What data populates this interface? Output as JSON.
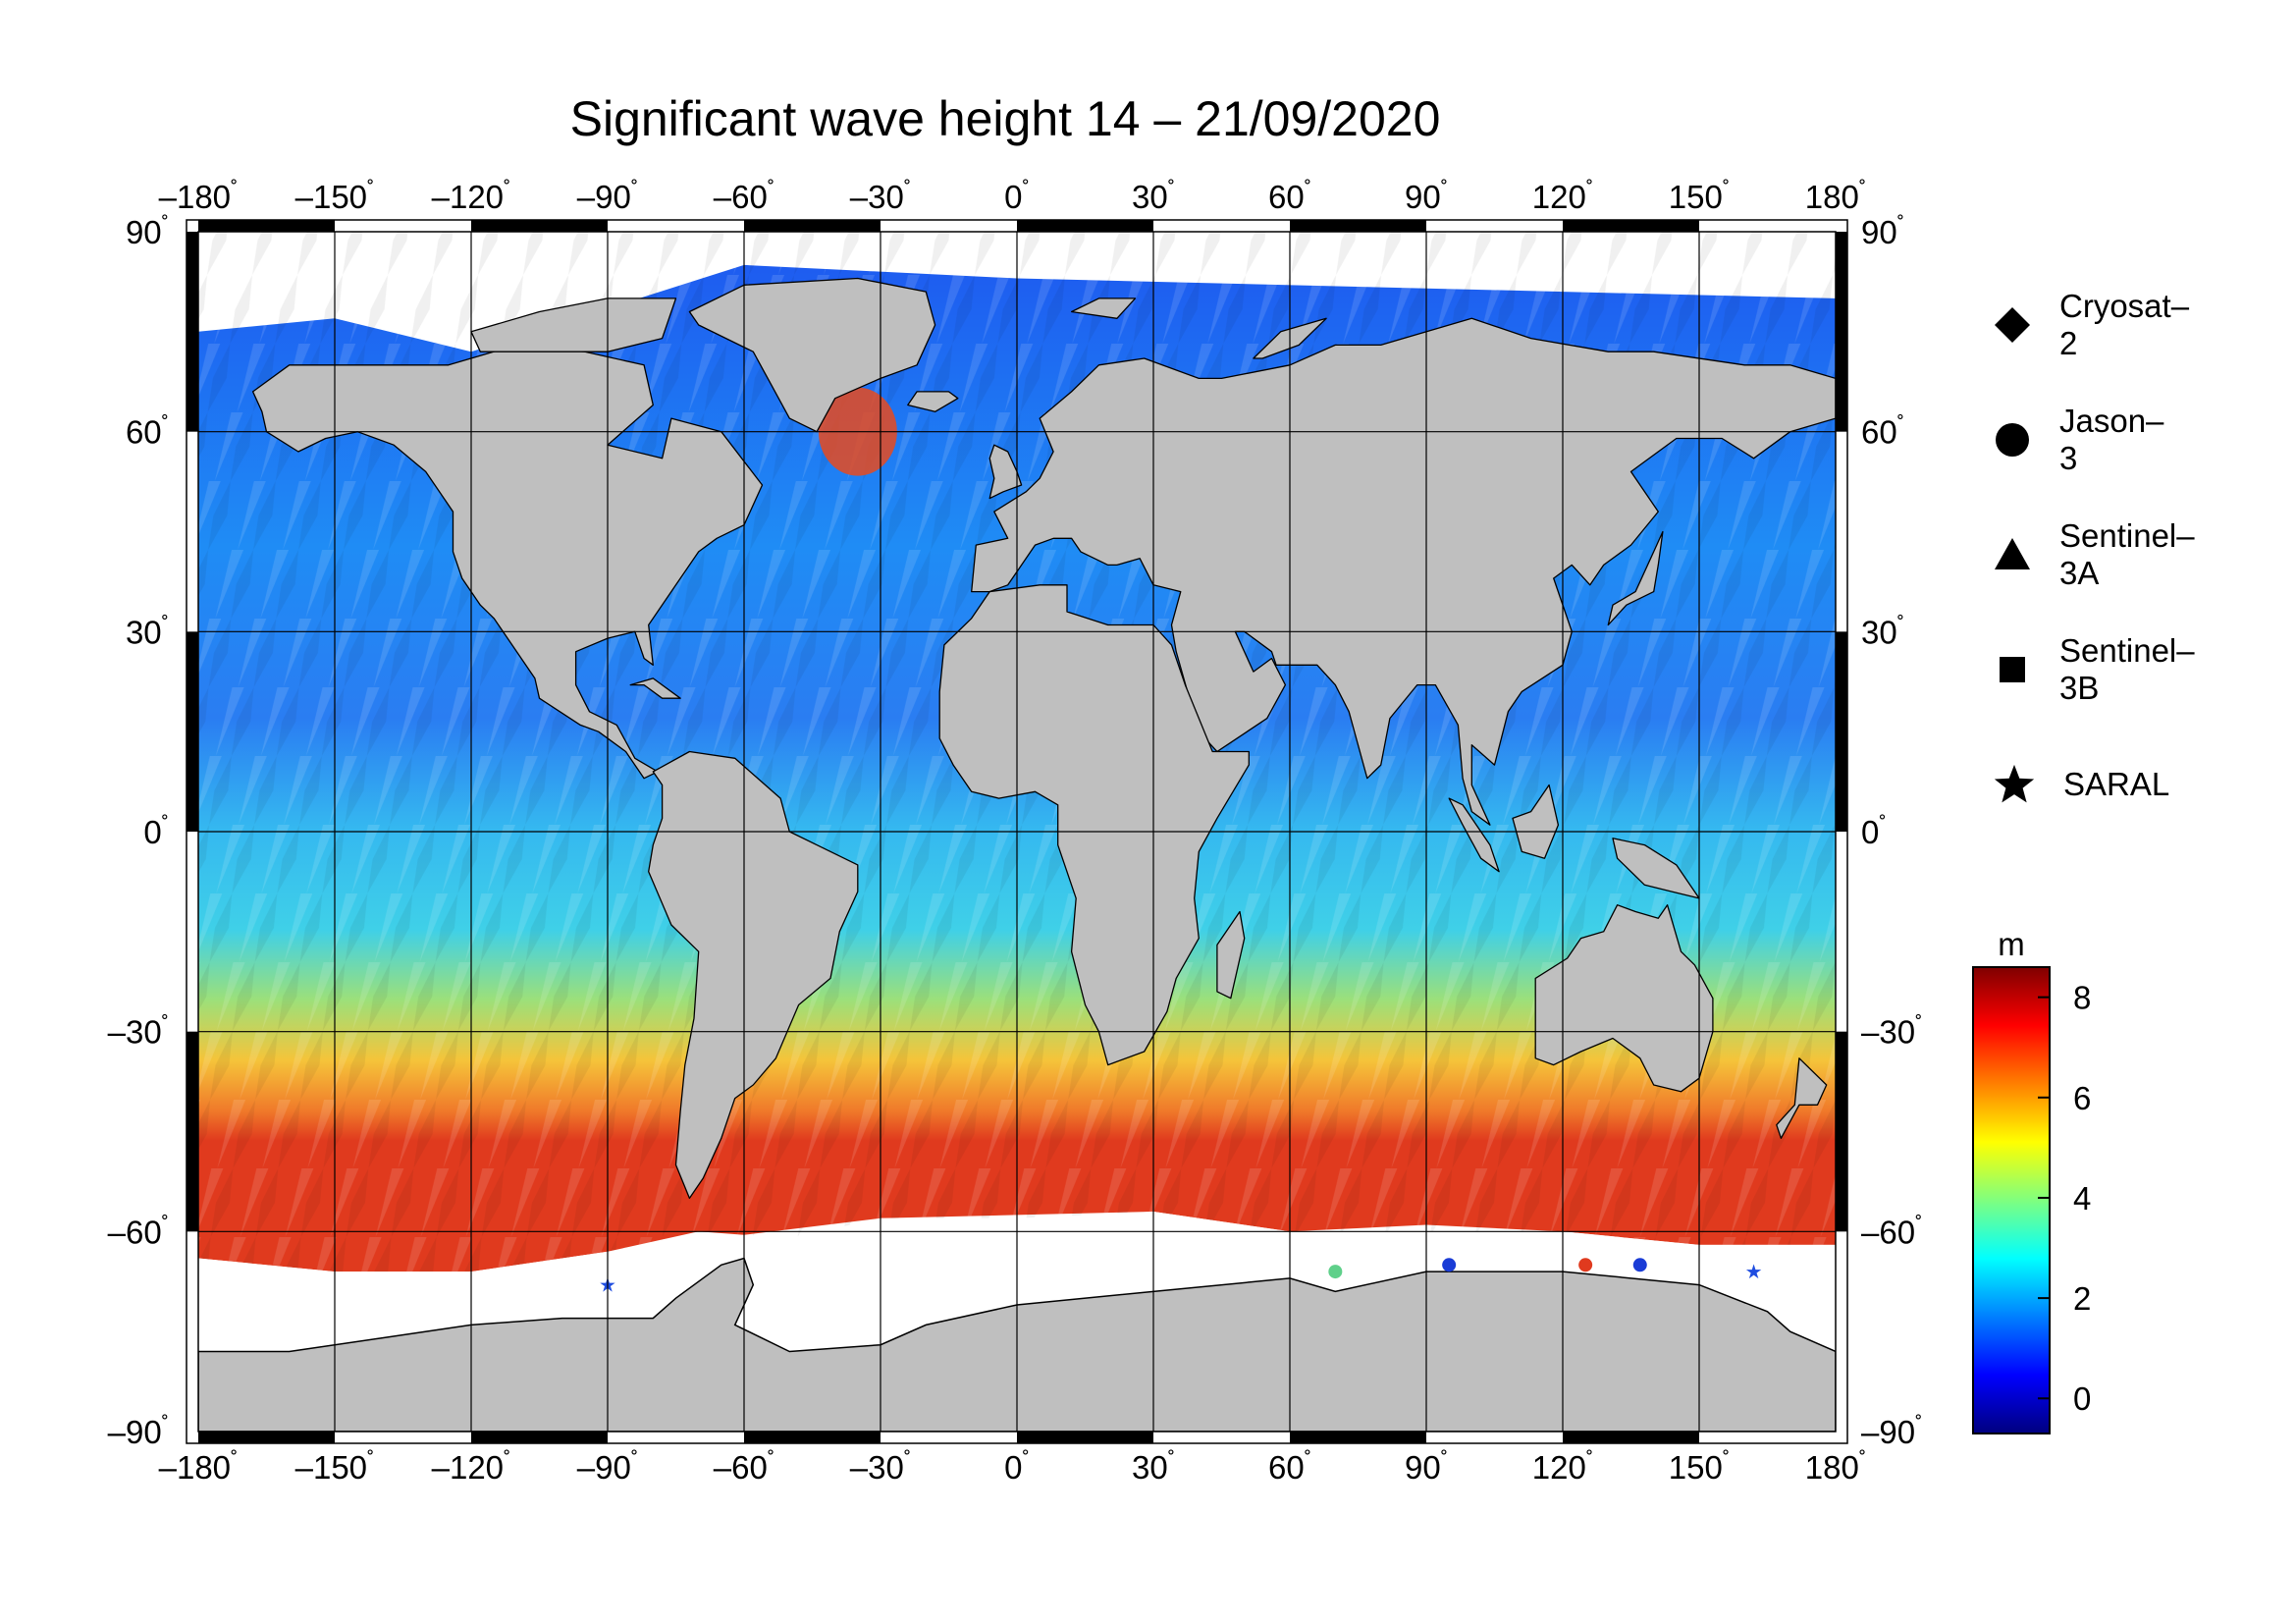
{
  "title": "Significant wave height 14 – 21/09/2020",
  "lon_ticks": [
    "–180",
    "–150",
    "–120",
    "–90",
    "–60",
    "–30",
    "0",
    "30",
    "60",
    "90",
    "120",
    "150",
    "180"
  ],
  "lat_ticks": [
    "90",
    "60",
    "30",
    "0",
    "–30",
    "–60",
    "–90"
  ],
  "degree_symbol": "˚",
  "legend": [
    {
      "label": "Cryosat–2",
      "icon": "diamond-icon"
    },
    {
      "label": "Jason–3",
      "icon": "circle-icon"
    },
    {
      "label": "Sentinel–3A",
      "icon": "triangle-icon"
    },
    {
      "label": "Sentinel–3B",
      "icon": "square-icon"
    },
    {
      "label": "SARAL",
      "icon": "star-icon"
    }
  ],
  "colorbar": {
    "unit": "m",
    "ticks": [
      "8",
      "6",
      "4",
      "2",
      "0"
    ],
    "min": -0.7,
    "max": 8.6,
    "colors": [
      "#00007f",
      "#0000ff",
      "#007fff",
      "#00ffff",
      "#7fff7f",
      "#ffff00",
      "#ff7f00",
      "#ff0000",
      "#7f0000"
    ]
  },
  "colors": {
    "land": "#bfbfbf",
    "ice": "#ffffff",
    "frame": "#000000"
  }
}
